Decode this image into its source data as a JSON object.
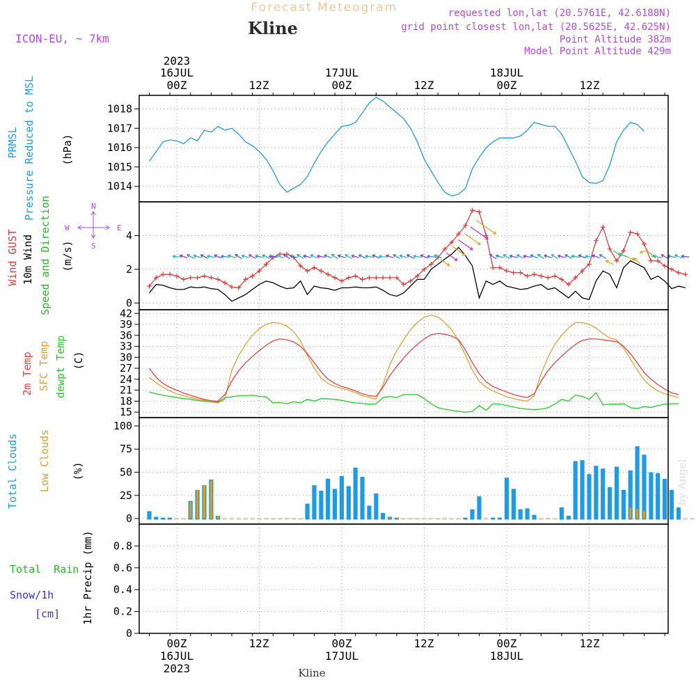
{
  "header": {
    "title": "Forecast Meteogram",
    "location": "Kline",
    "model": "ICON-EU, ~ 7km",
    "requested": "requested lon,lat (20.5761E, 42.6188N)",
    "gridpoint": "grid point closest lon,lat (20.5625E, 42.625N)",
    "point_alt": "Point Altitude 382m",
    "model_alt": "Model Point Altitude 429m",
    "credit": "by Angel"
  },
  "colors": {
    "pressure": "#1e9be6",
    "gust": "#e03c3c",
    "wind": "#000000",
    "dir_label": "#22bb22",
    "temp2m": "#e84040",
    "sfc": "#e0a030",
    "dew": "#22cc22",
    "total_cloud": "#1e9be6",
    "low_cloud": "#d4a030",
    "rain": "#22bb22",
    "snow": "#3333ee",
    "purple": "#b04ce0"
  },
  "time_axis": {
    "top_dates": [
      "16JUL",
      "17JUL",
      "18JUL"
    ],
    "year": "2023",
    "ticks": [
      "00Z",
      "12Z",
      "00Z",
      "12Z",
      "00Z",
      "12Z"
    ],
    "footer": "Kline"
  },
  "panels": {
    "pressure": {
      "label1": "PRMSL",
      "label2": "Pressure Reduced to MSL",
      "units": "(hPa)"
    },
    "wind": {
      "label_gust": "Wind GUST",
      "label_wind": "10m Wind",
      "label_dir": "Speed and Direction",
      "units": "(m/s)",
      "compass": {
        "n": "N",
        "s": "S",
        "e": "E",
        "w": "W"
      }
    },
    "temp": {
      "label_t2": "2m Temp",
      "label_sfc": "SFC Temp",
      "label_dew": "dewpt Temp",
      "units": "(C)"
    },
    "cloud": {
      "label_total": "Total Clouds",
      "label_low": "Low Clouds",
      "units": "(%)"
    },
    "precip": {
      "label_rain": "Total  Rain",
      "label_snow": "Snow/1h",
      "label_cm": "[cm]",
      "label_axis": "1hr Precip (mm)"
    }
  },
  "chart_data": [
    {
      "type": "line",
      "title": "PRMSL",
      "ylabel": "(hPa)",
      "ylim": [
        1013.2,
        1018.7
      ],
      "yticks": [
        1014,
        1015,
        1016,
        1017,
        1018
      ],
      "x_start_hours": -4,
      "x_step_hours": 1,
      "series": [
        {
          "name": "PRMSL",
          "values": [
            1015.3,
            1015.8,
            1016.3,
            1016.4,
            1016.35,
            1016.2,
            1016.5,
            1016.35,
            1016.9,
            1016.8,
            1017.1,
            1016.9,
            1017.0,
            1016.7,
            1016.3,
            1016.1,
            1015.8,
            1015.4,
            1014.8,
            1014.1,
            1013.7,
            1013.9,
            1014.1,
            1014.5,
            1015.2,
            1015.8,
            1016.3,
            1016.7,
            1017.1,
            1017.15,
            1017.3,
            1017.8,
            1018.3,
            1018.6,
            1018.4,
            1018.1,
            1017.8,
            1017.5,
            1017.0,
            1016.3,
            1015.4,
            1014.8,
            1014.2,
            1013.7,
            1013.5,
            1013.6,
            1013.9,
            1014.9,
            1015.5,
            1016.0,
            1016.3,
            1016.5,
            1016.5,
            1016.5,
            1016.6,
            1016.9,
            1017.3,
            1017.2,
            1017.1,
            1017.1,
            1016.7,
            1016.0,
            1015.3,
            1014.5,
            1014.2,
            1014.15,
            1014.3,
            1015.1,
            1016.3,
            1016.9,
            1017.3,
            1017.2,
            1016.85
          ]
        }
      ]
    },
    {
      "type": "line",
      "title": "Wind GUST / 10m Wind",
      "ylabel": "(m/s)",
      "ylim": [
        -0.4,
        6.0
      ],
      "yticks": [
        0,
        2,
        4
      ],
      "x_start_hours": -4,
      "x_step_hours": 1,
      "series": [
        {
          "name": "Wind GUST",
          "values": [
            1.0,
            1.5,
            1.7,
            1.7,
            1.6,
            1.4,
            1.5,
            1.5,
            1.6,
            1.5,
            1.4,
            1.2,
            0.95,
            0.9,
            1.4,
            1.6,
            1.9,
            2.3,
            2.7,
            2.9,
            2.9,
            2.7,
            2.2,
            1.9,
            2.1,
            1.9,
            1.7,
            1.5,
            1.3,
            1.5,
            1.6,
            1.4,
            1.5,
            1.5,
            1.5,
            1.5,
            1.5,
            1.1,
            1.3,
            1.6,
            2.0,
            2.3,
            2.7,
            3.2,
            3.6,
            4.1,
            4.6,
            5.5,
            5.4,
            4.0,
            2.1,
            2.1,
            1.9,
            1.8,
            1.8,
            1.6,
            1.7,
            1.6,
            1.5,
            1.6,
            1.4,
            1.1,
            1.5,
            1.9,
            2.3,
            3.7,
            4.5,
            3.2,
            2.5,
            3.1,
            4.2,
            4.1,
            3.5,
            2.5,
            2.5,
            2.2,
            2.0,
            1.8,
            1.7
          ]
        },
        {
          "name": "10m Wind",
          "values": [
            0.6,
            1.1,
            1.05,
            0.9,
            0.8,
            0.8,
            0.95,
            0.9,
            0.95,
            0.85,
            0.8,
            0.5,
            0.1,
            0.3,
            0.5,
            0.8,
            1.1,
            1.3,
            1.2,
            1.0,
            0.85,
            0.9,
            1.3,
            0.5,
            1.0,
            0.9,
            0.85,
            0.75,
            0.9,
            0.9,
            0.95,
            0.9,
            0.9,
            0.95,
            0.75,
            0.5,
            0.4,
            0.6,
            1.0,
            1.4,
            1.4,
            2.0,
            2.3,
            2.6,
            2.9,
            3.3,
            2.8,
            2.2,
            0.3,
            1.3,
            1.1,
            1.3,
            1.0,
            0.9,
            0.8,
            0.85,
            1.0,
            1.1,
            0.8,
            0.9,
            0.6,
            0.3,
            0.7,
            0.3,
            0.2,
            1.3,
            1.9,
            1.7,
            0.9,
            2.1,
            2.5,
            2.3,
            2.1,
            1.4,
            1.6,
            1.3,
            0.85,
            1.0,
            0.9
          ]
        }
      ]
    },
    {
      "type": "line",
      "title": "Temperatures",
      "ylabel": "(C)",
      "ylim": [
        13.5,
        43
      ],
      "yticks": [
        15,
        18,
        21,
        24,
        27,
        30,
        33,
        36,
        39,
        42
      ],
      "x_start_hours": -4,
      "x_step_hours": 1,
      "series": [
        {
          "name": "2m Temp",
          "values": [
            27,
            24.5,
            22.8,
            21.8,
            21.0,
            20.2,
            19.6,
            19.0,
            18.5,
            18.1,
            18.0,
            19.8,
            23.5,
            26.3,
            28.5,
            30.2,
            31.8,
            33.3,
            34.5,
            35.0,
            34.8,
            34.2,
            33.0,
            31.0,
            28.5,
            26.0,
            24.0,
            22.8,
            22.0,
            21.5,
            20.8,
            20.0,
            19.5,
            19.3,
            21.8,
            25.0,
            27.5,
            29.8,
            31.8,
            33.5,
            35.0,
            36.2,
            36.5,
            36.3,
            35.8,
            34.8,
            32.0,
            28.5,
            25.5,
            23.3,
            22.0,
            21.2,
            20.5,
            19.8,
            19.3,
            19.0,
            20.0,
            23.5,
            26.3,
            28.5,
            30.3,
            32.0,
            33.5,
            34.6,
            35.0,
            35.0,
            34.8,
            34.5,
            34.3,
            33.0,
            31.0,
            28.5,
            25.8,
            24.0,
            22.5,
            21.3,
            20.3,
            19.8
          ]
        },
        {
          "name": "SFC Temp",
          "values": [
            24.5,
            23.0,
            21.8,
            20.8,
            20.0,
            19.5,
            19.0,
            18.6,
            18.2,
            17.8,
            17.5,
            18.5,
            26.5,
            30.5,
            33.5,
            36.0,
            37.8,
            39.0,
            39.5,
            39.3,
            38.5,
            37.0,
            34.5,
            30.5,
            27.0,
            24.3,
            22.8,
            22.0,
            21.5,
            21.0,
            20.3,
            19.5,
            19.0,
            18.6,
            22.5,
            28.0,
            31.8,
            34.8,
            37.5,
            39.5,
            41.0,
            41.5,
            41.0,
            39.5,
            37.5,
            34.5,
            30.5,
            26.5,
            23.5,
            21.8,
            20.8,
            20.0,
            19.2,
            18.7,
            18.3,
            18.0,
            19.5,
            25.5,
            30.0,
            33.5,
            36.0,
            38.0,
            39.5,
            39.5,
            39.0,
            38.0,
            36.5,
            35.3,
            34.8,
            32.5,
            29.5,
            26.5,
            23.8,
            22.0,
            20.8,
            20.0,
            19.5,
            19.0
          ]
        },
        {
          "name": "dewpt Temp",
          "values": [
            20.5,
            20.0,
            19.6,
            19.3,
            19.0,
            18.7,
            18.5,
            18.2,
            18.0,
            17.8,
            17.7,
            18.9,
            19.2,
            19.5,
            19.5,
            19.6,
            19.3,
            19.2,
            17.5,
            17.6,
            17.3,
            17.8,
            17.5,
            18.5,
            18.0,
            18.7,
            18.6,
            18.5,
            18.2,
            17.8,
            17.5,
            17.4,
            17.2,
            17.3,
            19.0,
            19.3,
            19.0,
            19.8,
            19.8,
            19.8,
            18.7,
            17.3,
            16.2,
            15.8,
            15.5,
            15.2,
            15.0,
            15.2,
            16.8,
            15.5,
            17.3,
            17.2,
            16.8,
            16.4,
            16.0,
            15.8,
            15.7,
            15.8,
            16.2,
            17.2,
            18.5,
            18.0,
            19.7,
            19.3,
            18.5,
            20.3,
            17.0,
            17.2,
            17.2,
            17.3,
            16.2,
            16.0,
            16.5,
            16.3,
            16.8,
            17.2,
            17.3,
            17.3
          ]
        }
      ]
    },
    {
      "type": "bar",
      "title": "Clouds",
      "ylabel": "(%)",
      "ylim": [
        -6,
        109
      ],
      "yticks": [
        0,
        25,
        50,
        75,
        100
      ],
      "x_start_hours": -4,
      "x_step_hours": 1,
      "series": [
        {
          "name": "Total Clouds",
          "values": [
            8,
            2,
            1,
            1,
            0,
            0,
            19,
            31,
            36,
            42,
            3,
            0,
            0,
            0,
            0,
            0,
            0,
            0,
            0,
            0,
            0,
            0,
            0,
            16,
            36,
            30,
            43,
            32,
            46,
            35,
            55,
            45,
            14,
            27,
            6,
            2,
            1,
            0,
            0,
            0,
            0,
            0,
            0,
            0,
            0,
            0,
            1,
            10,
            24,
            0,
            1,
            1,
            44,
            32,
            10,
            11,
            4,
            0,
            0,
            0,
            12,
            3,
            62,
            63,
            48,
            57,
            54,
            34,
            56,
            31,
            52,
            78,
            69,
            50,
            49,
            43,
            31,
            12,
            0,
            0,
            0
          ]
        },
        {
          "name": "Low Clouds",
          "values": [
            0,
            0,
            0,
            0,
            0,
            0,
            18,
            31,
            36,
            41,
            3,
            0,
            0,
            0,
            0,
            0,
            0,
            0,
            0,
            0,
            0,
            0,
            0,
            0,
            0,
            0,
            0,
            0,
            0,
            0,
            0,
            0,
            0,
            0,
            0,
            1,
            1,
            0,
            0,
            0,
            0,
            0,
            0,
            0,
            0,
            0,
            0,
            0,
            0,
            0,
            0,
            0,
            0,
            0,
            0,
            0,
            0,
            0,
            0,
            0,
            0,
            0,
            0,
            0,
            0,
            0,
            0,
            0,
            0,
            0,
            12,
            10,
            8,
            0,
            0,
            0,
            0,
            0,
            0,
            0,
            0
          ]
        }
      ]
    },
    {
      "type": "bar",
      "title": "1hr Precip",
      "ylabel": "1hr Precip (mm)",
      "ylim": [
        0,
        1.0
      ],
      "yticks": [
        "0",
        "0.2",
        "0.4",
        "0.6",
        "0.8"
      ],
      "series": [
        {
          "name": "Total Rain",
          "values": []
        },
        {
          "name": "Snow/1h",
          "values": []
        }
      ]
    }
  ]
}
